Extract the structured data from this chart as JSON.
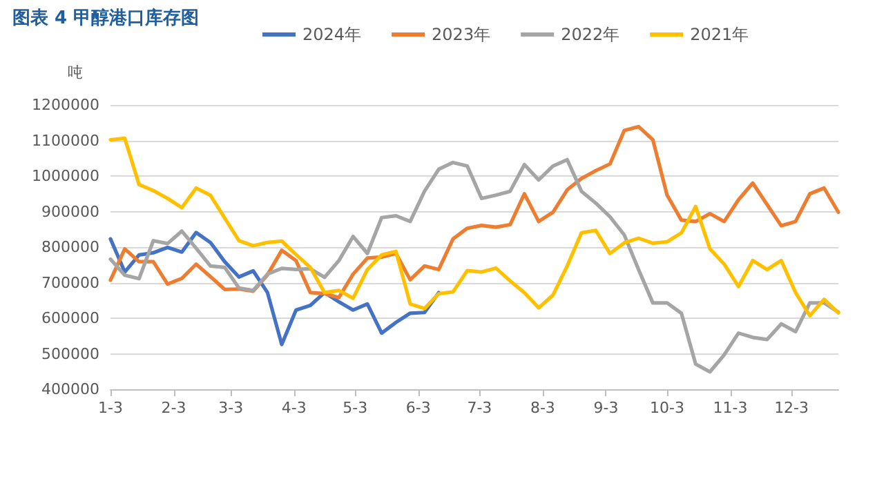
{
  "chart_data": {
    "type": "line",
    "title": "图表 4 甲醇港口库存图",
    "ylabel": "吨",
    "x": [
      "--01-03",
      "--01-10",
      "--01-17",
      "--01-24",
      "--01-31",
      "--02-07",
      "--02-14",
      "--02-21",
      "--02-28",
      "--03-07",
      "--03-14",
      "--03-21",
      "--03-28",
      "--04-04",
      "--04-11",
      "--04-18",
      "--04-25",
      "--05-02",
      "--05-09",
      "--05-16",
      "--05-23",
      "--05-30",
      "--06-06",
      "--06-13",
      "--06-20",
      "--06-27",
      "--07-04",
      "--07-11",
      "--07-18",
      "--07-25",
      "--08-01",
      "--08-08",
      "--08-15",
      "--08-22",
      "--08-29",
      "--09-05",
      "--09-12",
      "--09-19",
      "--09-26",
      "--10-03",
      "--10-10",
      "--10-17",
      "--10-24",
      "--10-31",
      "--11-07",
      "--11-14",
      "--11-21",
      "--11-28",
      "--12-05",
      "--12-12",
      "--12-19",
      "--12-26"
    ],
    "series": [
      {
        "name": "2024年",
        "color": "#4472c4",
        "values": [
          823000,
          730000,
          778000,
          784000,
          799000,
          786000,
          841000,
          813000,
          759000,
          716000,
          733000,
          672000,
          526000,
          623000,
          636000,
          672000,
          646000,
          623000,
          640000,
          558000,
          588000,
          614000,
          616000,
          672000,
          null,
          null,
          null,
          null,
          null,
          null,
          null,
          null,
          null,
          null,
          null,
          null,
          null,
          null,
          null,
          null,
          null,
          null,
          null,
          null,
          null,
          null,
          null,
          null,
          null,
          null,
          null,
          null
        ]
      },
      {
        "name": "2023年",
        "color": "#ed7d31",
        "values": [
          707000,
          795000,
          759000,
          759000,
          696000,
          712000,
          752000,
          717000,
          681000,
          682000,
          676000,
          722000,
          791000,
          762000,
          672000,
          669000,
          658000,
          724000,
          769000,
          772000,
          782000,
          708000,
          747000,
          737000,
          823000,
          853000,
          861000,
          856000,
          863000,
          950000,
          872000,
          898000,
          961000,
          993000,
          1015000,
          1034000,
          1128000,
          1139000,
          1102000,
          946000,
          876000,
          872000,
          894000,
          872000,
          933000,
          980000,
          920000,
          860000,
          872000,
          950000,
          966000,
          898000
        ]
      },
      {
        "name": "2022年",
        "color": "#a5a5a5",
        "values": [
          766000,
          721000,
          711000,
          818000,
          810000,
          845000,
          797000,
          747000,
          743000,
          685000,
          678000,
          724000,
          740000,
          737000,
          739000,
          715000,
          762000,
          830000,
          782000,
          883000,
          888000,
          872000,
          957000,
          1019000,
          1038000,
          1028000,
          937000,
          946000,
          957000,
          1032000,
          989000,
          1028000,
          1046000,
          957000,
          924000,
          885000,
          834000,
          737000,
          643000,
          643000,
          614000,
          471000,
          449000,
          497000,
          558000,
          546000,
          540000,
          584000,
          562000,
          643000,
          643000,
          617000
        ]
      },
      {
        "name": "2021年",
        "color": "#ffc000",
        "values": [
          1102000,
          1106000,
          976000,
          959000,
          937000,
          911000,
          966000,
          946000,
          882000,
          818000,
          804000,
          813000,
          817000,
          779000,
          743000,
          672000,
          678000,
          656000,
          737000,
          778000,
          788000,
          640000,
          627000,
          669000,
          674000,
          734000,
          730000,
          741000,
          705000,
          672000,
          629000,
          665000,
          747000,
          840000,
          847000,
          782000,
          812000,
          825000,
          811000,
          815000,
          840000,
          914000,
          795000,
          752000,
          689000,
          762000,
          737000,
          762000,
          672000,
          607000,
          653000,
          615000
        ]
      }
    ],
    "xlim": [
      "--01-03",
      "--12-26"
    ],
    "xticks": [
      {
        "value": "--01-03",
        "label": "1-3"
      },
      {
        "value": "--02-03",
        "label": "2-3"
      },
      {
        "value": "--03-03",
        "label": "3-3"
      },
      {
        "value": "--04-03",
        "label": "4-3"
      },
      {
        "value": "--05-03",
        "label": "5-3"
      },
      {
        "value": "--06-03",
        "label": "6-3"
      },
      {
        "value": "--07-03",
        "label": "7-3"
      },
      {
        "value": "--08-03",
        "label": "8-3"
      },
      {
        "value": "--09-03",
        "label": "9-3"
      },
      {
        "value": "--10-03",
        "label": "10-3"
      },
      {
        "value": "--11-03",
        "label": "11-3"
      },
      {
        "value": "--12-03",
        "label": "12-3"
      }
    ],
    "ylim": [
      400000,
      1200000
    ],
    "yticks": [
      400000,
      500000,
      600000,
      700000,
      800000,
      900000,
      1000000,
      1100000,
      1200000
    ],
    "grid": "y",
    "legend": "top",
    "marker": "none",
    "line_style": "solid"
  }
}
